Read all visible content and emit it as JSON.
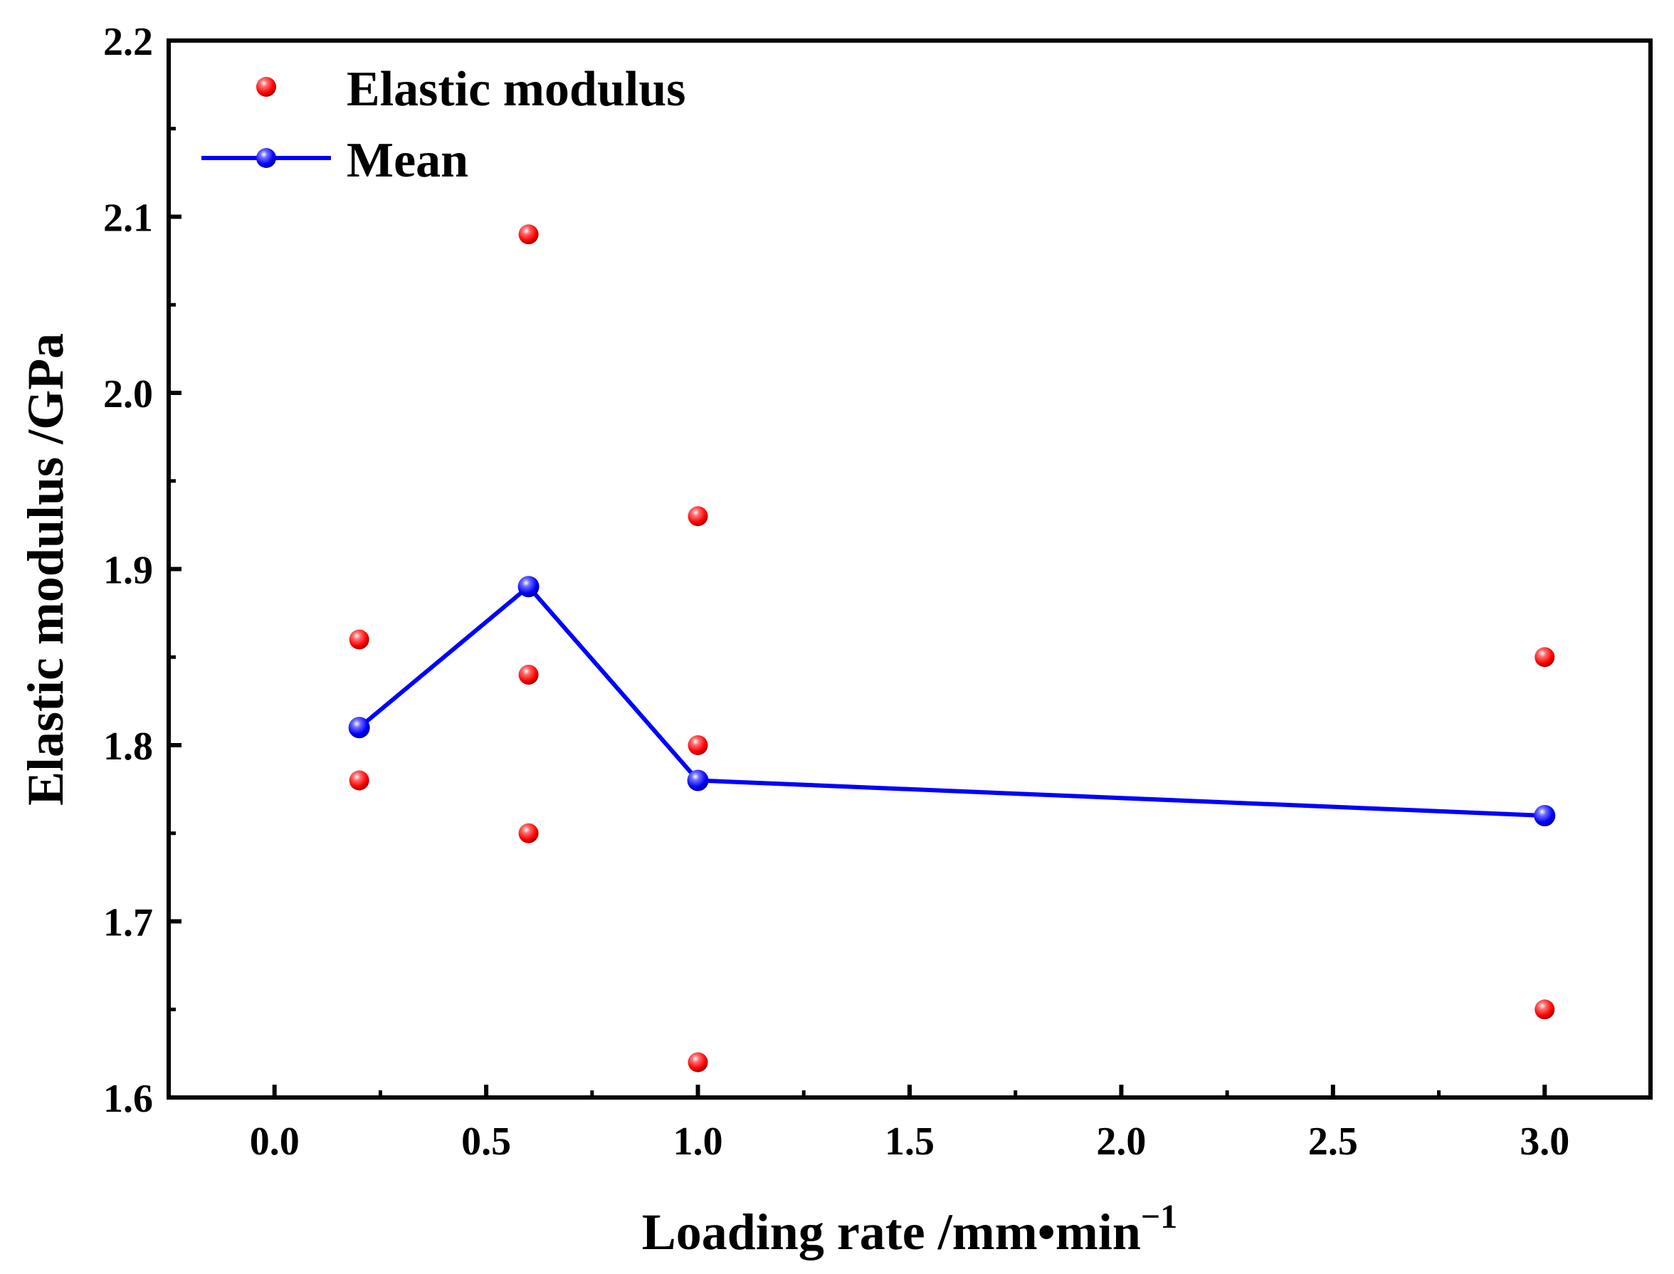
{
  "chart_data": {
    "type": "scatter",
    "xlabel": "Loading rate /mm•min",
    "xlabel_sup": "−1",
    "ylabel": "Elastic modulus /GPa",
    "xlim": [
      -0.25,
      3.25
    ],
    "ylim": [
      1.6,
      2.2
    ],
    "x_ticks": [
      "0.0",
      "0.5",
      "1.0",
      "1.5",
      "2.0",
      "2.5",
      "3.0"
    ],
    "x_tick_values": [
      0.0,
      0.5,
      1.0,
      1.5,
      2.0,
      2.5,
      3.0
    ],
    "x_tick_positions": [
      0.0,
      0.5,
      1.0,
      1.5,
      2.0,
      2.5,
      3.0
    ],
    "y_ticks": [
      "1.6",
      "1.7",
      "1.8",
      "1.9",
      "2.0",
      "2.1",
      "2.2"
    ],
    "y_tick_values": [
      1.6,
      1.7,
      1.8,
      1.9,
      2.0,
      2.1,
      2.2
    ],
    "legend_position": "top-left",
    "series": [
      {
        "name": "Elastic modulus",
        "kind": "scatter",
        "color": "#ff0000",
        "x": [
          0.2,
          0.2,
          0.6,
          0.6,
          0.6,
          1.0,
          1.0,
          1.0,
          3.0,
          3.0
        ],
        "y": [
          1.86,
          1.78,
          2.09,
          1.84,
          1.75,
          1.93,
          1.8,
          1.62,
          1.85,
          1.65
        ]
      },
      {
        "name": "Mean",
        "kind": "line+marker",
        "color": "#0000ff",
        "x": [
          0.2,
          0.6,
          1.0,
          3.0
        ],
        "y": [
          1.81,
          1.89,
          1.78,
          1.76
        ]
      }
    ]
  }
}
